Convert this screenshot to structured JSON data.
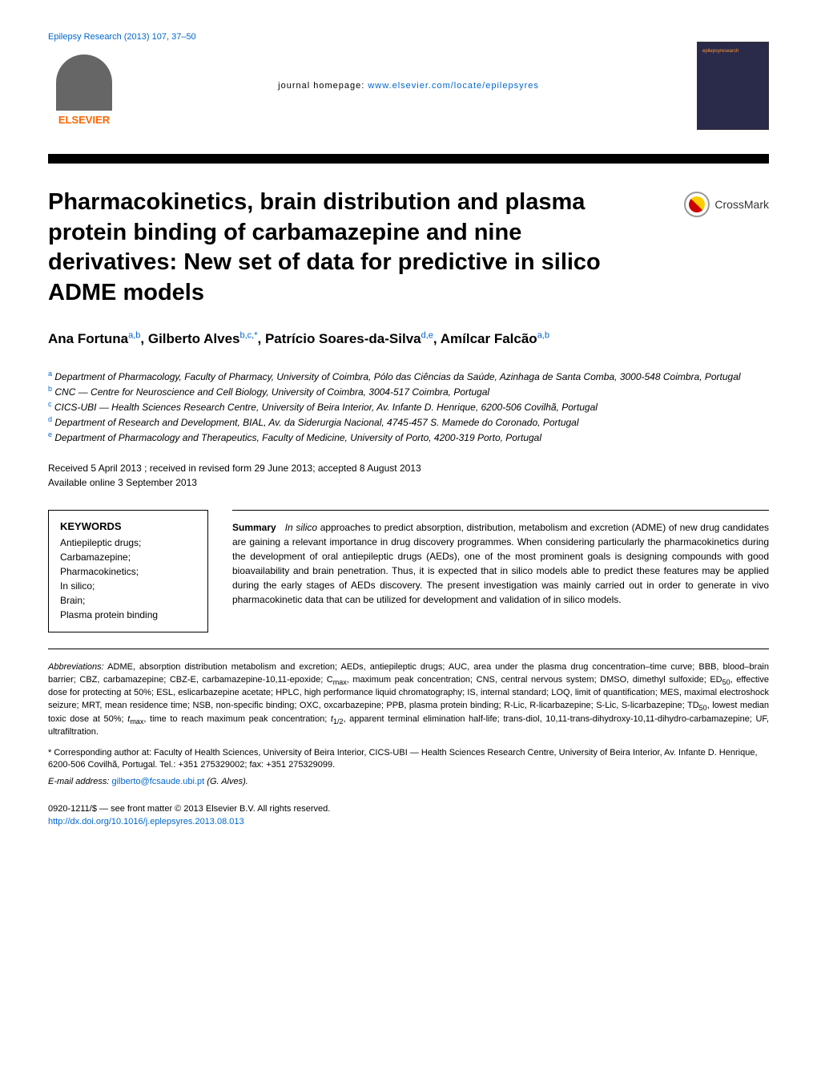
{
  "header": {
    "journal_ref": "Epilepsy Research (2013) 107, 37–50",
    "homepage_label": "journal homepage:",
    "homepage_url": "www.elsevier.com/locate/epilepsyres",
    "elsevier_label": "ELSEVIER",
    "cover_label": "epilepsyresearch"
  },
  "crossmark": {
    "label": "CrossMark"
  },
  "title": "Pharmacokinetics, brain distribution and plasma protein binding of carbamazepine and nine derivatives: New set of data for predictive in silico ADME models",
  "authors": [
    {
      "name": "Ana Fortuna",
      "affs": "a,b"
    },
    {
      "name": "Gilberto Alves",
      "affs": "b,c,*"
    },
    {
      "name": "Patrício Soares-da-Silva",
      "affs": "d,e"
    },
    {
      "name": "Amílcar Falcão",
      "affs": "a,b"
    }
  ],
  "affiliations": {
    "a": "Department of Pharmacology, Faculty of Pharmacy, University of Coimbra, Pólo das Ciências da Saúde, Azinhaga de Santa Comba, 3000-548 Coimbra, Portugal",
    "b": "CNC — Centre for Neuroscience and Cell Biology, University of Coimbra, 3004-517 Coimbra, Portugal",
    "c": "CICS-UBI — Health Sciences Research Centre, University of Beira Interior, Av. Infante D. Henrique, 6200-506 Covilhã, Portugal",
    "d": "Department of Research and Development, BIAL, Av. da Siderurgia Nacional, 4745-457 S. Mamede do Coronado, Portugal",
    "e": "Department of Pharmacology and Therapeutics, Faculty of Medicine, University of Porto, 4200-319 Porto, Portugal"
  },
  "dates": {
    "received": "Received 5 April 2013 ; received in revised form 29 June 2013; accepted 8 August 2013",
    "available": "Available online 3 September 2013"
  },
  "keywords": {
    "heading": "KEYWORDS",
    "items": "Antiepileptic drugs;\nCarbamazepine;\nPharmacokinetics;\nIn silico;\nBrain;\nPlasma protein binding"
  },
  "summary": {
    "heading": "Summary",
    "text": "In silico approaches to predict absorption, distribution, metabolism and excretion (ADME) of new drug candidates are gaining a relevant importance in drug discovery programmes. When considering particularly the pharmacokinetics during the development of oral antiepileptic drugs (AEDs), one of the most prominent goals is designing compounds with good bioavailability and brain penetration. Thus, it is expected that in silico models able to predict these features may be applied during the early stages of AEDs discovery. The present investigation was mainly carried out in order to generate in vivo pharmacokinetic data that can be utilized for development and validation of in silico models."
  },
  "abbreviations": {
    "label": "Abbreviations:",
    "text": "ADME, absorption distribution metabolism and excretion; AEDs, antiepileptic drugs; AUC, area under the plasma drug concentration–time curve; BBB, blood–brain barrier; CBZ, carbamazepine; CBZ-E, carbamazepine-10,11-epoxide; Cmax, maximum peak concentration; CNS, central nervous system; DMSO, dimethyl sulfoxide; ED50, effective dose for protecting at 50%; ESL, eslicarbazepine acetate; HPLC, high performance liquid chromatography; IS, internal standard; LOQ, limit of quantification; MES, maximal electroshock seizure; MRT, mean residence time; NSB, non-specific binding; OXC, oxcarbazepine; PPB, plasma protein binding; R-Lic, R-licarbazepine; S-Lic, S-licarbazepine; TD50, lowest median toxic dose at 50%; tmax, time to reach maximum peak concentration; t1/2, apparent terminal elimination half-life; trans-diol, 10,11-trans-dihydroxy-10,11-dihydro-carbamazepine; UF, ultrafiltration."
  },
  "corresponding": {
    "marker": "*",
    "text": "Corresponding author at: Faculty of Health Sciences, University of Beira Interior, CICS-UBI — Health Sciences Research Centre, University of Beira Interior, Av. Infante D. Henrique, 6200-506 Covilhã, Portugal. Tel.: +351 275329002; fax: +351 275329099.",
    "email_label": "E-mail address:",
    "email": "gilberto@fcsaude.ubi.pt",
    "email_author": "(G. Alves)."
  },
  "footer": {
    "copyright": "0920-1211/$ — see front matter © 2013 Elsevier B.V. All rights reserved.",
    "doi": "http://dx.doi.org/10.1016/j.eplepsyres.2013.08.013"
  },
  "colors": {
    "link": "#0066cc",
    "elsevier_orange": "#ff6600",
    "text": "#000000",
    "background": "#ffffff"
  }
}
